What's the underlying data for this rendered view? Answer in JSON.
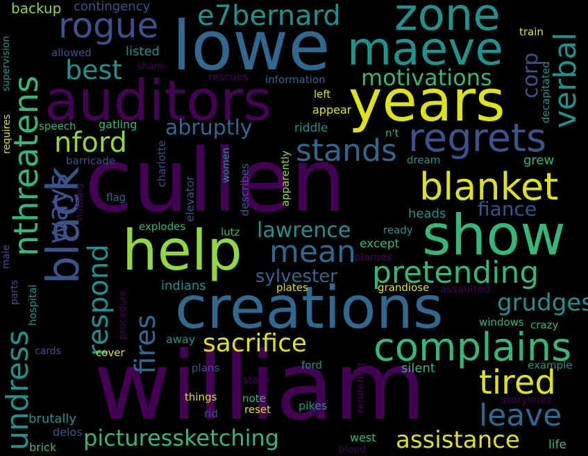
{
  "colors": {
    "background": "#000000",
    "purple": "#440154",
    "indigo": "#3b528b",
    "blue": "#31688e",
    "teal": "#21918c",
    "green": "#35b779",
    "lime": "#90d743",
    "yellow": "#dde318"
  },
  "words": [
    {
      "text": "cullen"
    },
    {
      "text": "william"
    },
    {
      "text": "lowe"
    },
    {
      "text": "auditors"
    },
    {
      "text": "years"
    },
    {
      "text": "creations"
    },
    {
      "text": "help"
    },
    {
      "text": "show"
    },
    {
      "text": "zone"
    },
    {
      "text": "maeve"
    },
    {
      "text": "black"
    },
    {
      "text": "complains"
    },
    {
      "text": "blanket"
    },
    {
      "text": "regrets"
    },
    {
      "text": "rogue"
    },
    {
      "text": "e7bernard"
    },
    {
      "text": "nthreatens"
    },
    {
      "text": "undress"
    },
    {
      "text": "pretending"
    },
    {
      "text": "tired"
    },
    {
      "text": "stands"
    },
    {
      "text": "verbal"
    },
    {
      "text": "mean"
    },
    {
      "text": "leave"
    },
    {
      "text": "best"
    },
    {
      "text": "nford"
    },
    {
      "text": "picturessketching"
    },
    {
      "text": "assistance"
    },
    {
      "text": "sacrifice"
    },
    {
      "text": "motivations"
    },
    {
      "text": "respond"
    },
    {
      "text": "ways"
    },
    {
      "text": "fires"
    },
    {
      "text": "grudges"
    },
    {
      "text": "lawrence"
    },
    {
      "text": "abruptly"
    },
    {
      "text": "corp"
    },
    {
      "text": "fiance"
    },
    {
      "text": "sylvester"
    },
    {
      "text": "backup"
    },
    {
      "text": "contingency"
    },
    {
      "text": "listed"
    },
    {
      "text": "allowed"
    },
    {
      "text": "sham"
    },
    {
      "text": "rescues"
    },
    {
      "text": "information"
    },
    {
      "text": "left"
    },
    {
      "text": "appear"
    },
    {
      "text": "train"
    },
    {
      "text": "decapitated"
    },
    {
      "text": "supervision"
    },
    {
      "text": "requires"
    },
    {
      "text": "speech"
    },
    {
      "text": "gatling"
    },
    {
      "text": "riddle"
    },
    {
      "text": "n't"
    },
    {
      "text": "barricade"
    },
    {
      "text": "charlotte"
    },
    {
      "text": "women"
    },
    {
      "text": "apparently"
    },
    {
      "text": "dream"
    },
    {
      "text": "grew"
    },
    {
      "text": "nothing"
    },
    {
      "text": "flag"
    },
    {
      "text": "elevator"
    },
    {
      "text": "describes"
    },
    {
      "text": "heads"
    },
    {
      "text": "explodes"
    },
    {
      "text": "lutz"
    },
    {
      "text": "ready"
    },
    {
      "text": "except"
    },
    {
      "text": "male"
    },
    {
      "text": "parts"
    },
    {
      "text": "hospital"
    },
    {
      "text": "blames"
    },
    {
      "text": "procedure"
    },
    {
      "text": "indians"
    },
    {
      "text": "plates"
    },
    {
      "text": "grandiose"
    },
    {
      "text": "assaulted"
    },
    {
      "text": "windows"
    },
    {
      "text": "crazy"
    },
    {
      "text": "away"
    },
    {
      "text": "cards"
    },
    {
      "text": "cover"
    },
    {
      "text": "rendering"
    },
    {
      "text": "ford"
    },
    {
      "text": "silent"
    },
    {
      "text": "example"
    },
    {
      "text": "plans"
    },
    {
      "text": "stack"
    },
    {
      "text": "things"
    },
    {
      "text": "note"
    },
    {
      "text": "storylines"
    },
    {
      "text": "rid"
    },
    {
      "text": "reset"
    },
    {
      "text": "pikes"
    },
    {
      "text": "brutally"
    },
    {
      "text": "delos"
    },
    {
      "text": "brick"
    },
    {
      "text": "blood"
    },
    {
      "text": "west"
    },
    {
      "text": "life"
    }
  ]
}
